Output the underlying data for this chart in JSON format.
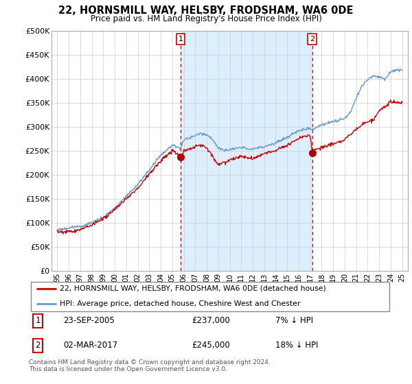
{
  "title": "22, HORNSMILL WAY, HELSBY, FRODSHAM, WA6 0DE",
  "subtitle": "Price paid vs. HM Land Registry's House Price Index (HPI)",
  "ylabel_ticks": [
    "£0",
    "£50K",
    "£100K",
    "£150K",
    "£200K",
    "£250K",
    "£300K",
    "£350K",
    "£400K",
    "£450K",
    "£500K"
  ],
  "ytick_values": [
    0,
    50000,
    100000,
    150000,
    200000,
    250000,
    300000,
    350000,
    400000,
    450000,
    500000
  ],
  "ylim": [
    0,
    500000
  ],
  "xlim_start": 1994.5,
  "xlim_end": 2025.5,
  "purchase1_date": 2005.73,
  "purchase1_price": 237000,
  "purchase2_date": 2017.17,
  "purchase2_price": 245000,
  "line_color_red": "#cc0000",
  "line_color_blue": "#6699cc",
  "shade_color": "#ddeeff",
  "dashed_line_color": "#cc0000",
  "background_color": "#ffffff",
  "grid_color": "#cccccc",
  "legend_text_red": "22, HORNSMILL WAY, HELSBY, FRODSHAM, WA6 0DE (detached house)",
  "legend_text_blue": "HPI: Average price, detached house, Cheshire West and Chester",
  "annotation1": [
    "1",
    "23-SEP-2005",
    "£237,000",
    "7% ↓ HPI"
  ],
  "annotation2": [
    "2",
    "02-MAR-2017",
    "£245,000",
    "18% ↓ HPI"
  ],
  "footer": "Contains HM Land Registry data © Crown copyright and database right 2024.\nThis data is licensed under the Open Government Licence v3.0.",
  "xlabel_years": [
    "95",
    "96",
    "97",
    "98",
    "99",
    "00",
    "01",
    "02",
    "03",
    "04",
    "05",
    "06",
    "07",
    "08",
    "09",
    "10",
    "11",
    "12",
    "13",
    "14",
    "15",
    "16",
    "17",
    "18",
    "19",
    "20",
    "21",
    "22",
    "23",
    "24",
    "25"
  ]
}
